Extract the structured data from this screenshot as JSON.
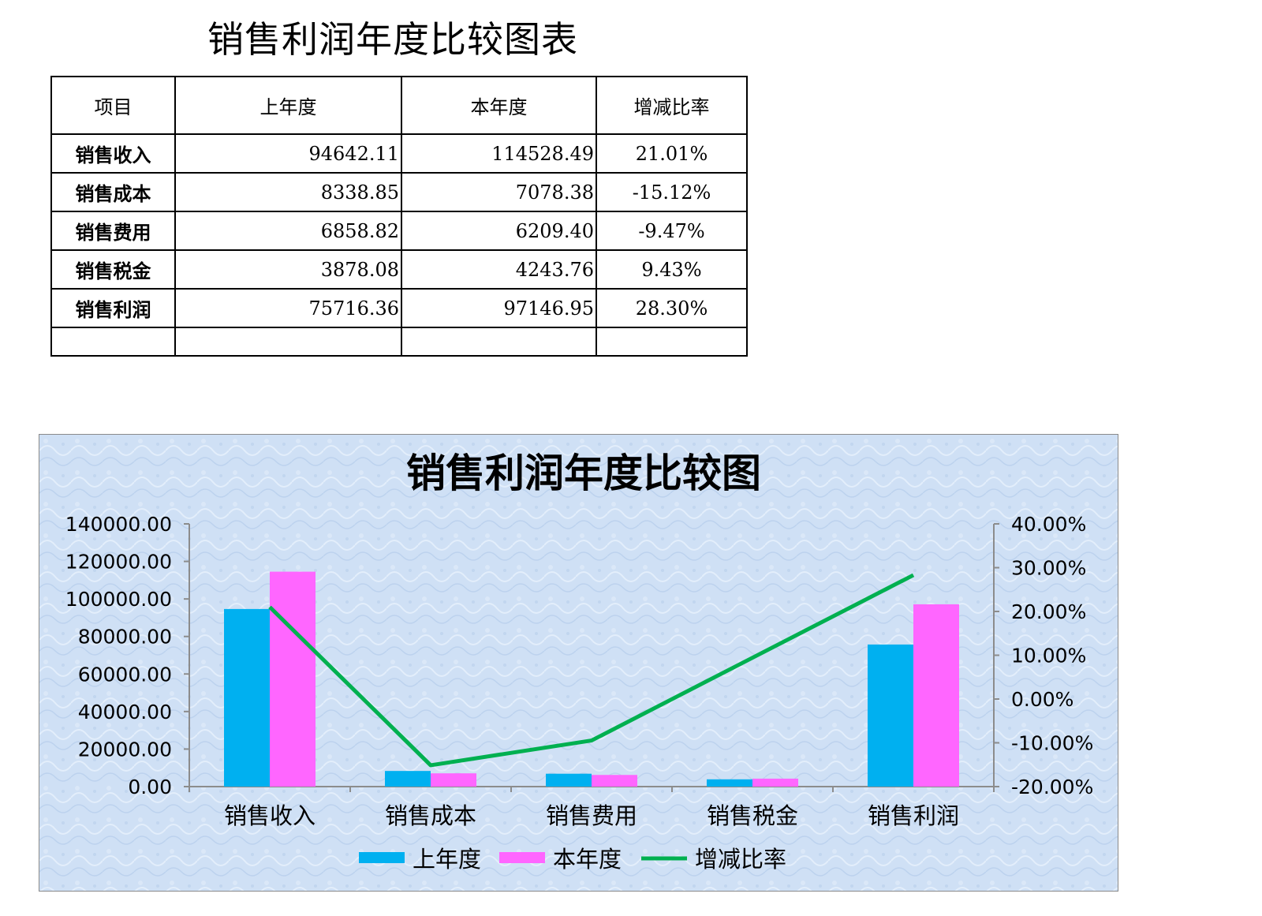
{
  "document_title": "销售利润年度比较图表",
  "table": {
    "headers": [
      "项目",
      "上年度",
      "本年度",
      "增减比率"
    ],
    "rows": [
      {
        "name": "销售收入",
        "last": "94642.11",
        "current": "114528.49",
        "rate": "21.01%"
      },
      {
        "name": "销售成本",
        "last": "8338.85",
        "current": "7078.38",
        "rate": "-15.12%"
      },
      {
        "name": "销售费用",
        "last": "6858.82",
        "current": "6209.40",
        "rate": "-9.47%"
      },
      {
        "name": "销售税金",
        "last": "3878.08",
        "current": "4243.76",
        "rate": "9.43%"
      },
      {
        "name": "销售利润",
        "last": "75716.36",
        "current": "97146.95",
        "rate": "28.30%"
      }
    ]
  },
  "chart_data": {
    "type": "bar",
    "title": "销售利润年度比较图",
    "categories": [
      "销售收入",
      "销售成本",
      "销售费用",
      "销售税金",
      "销售利润"
    ],
    "series": [
      {
        "name": "上年度",
        "type": "bar",
        "axis": "left",
        "color": "#00b0f0",
        "values": [
          94642.11,
          8338.85,
          6858.82,
          3878.08,
          75716.36
        ]
      },
      {
        "name": "本年度",
        "type": "bar",
        "axis": "left",
        "color": "#ff66ff",
        "values": [
          114528.49,
          7078.38,
          6209.4,
          4243.76,
          97146.95
        ]
      },
      {
        "name": "增减比率",
        "type": "line",
        "axis": "right",
        "color": "#00b050",
        "values": [
          21.01,
          -15.12,
          -9.47,
          9.43,
          28.3
        ]
      }
    ],
    "y_left": {
      "min": 0,
      "max": 140000,
      "ticks": [
        "0.00",
        "20000.00",
        "40000.00",
        "60000.00",
        "80000.00",
        "100000.00",
        "120000.00",
        "140000.00"
      ]
    },
    "y_right": {
      "min": -20,
      "max": 40,
      "ticks": [
        "-20.00%",
        "-10.00%",
        "0.00%",
        "10.00%",
        "20.00%",
        "30.00%",
        "40.00%"
      ]
    },
    "legend_position": "bottom",
    "background": "#cfe0f5"
  }
}
